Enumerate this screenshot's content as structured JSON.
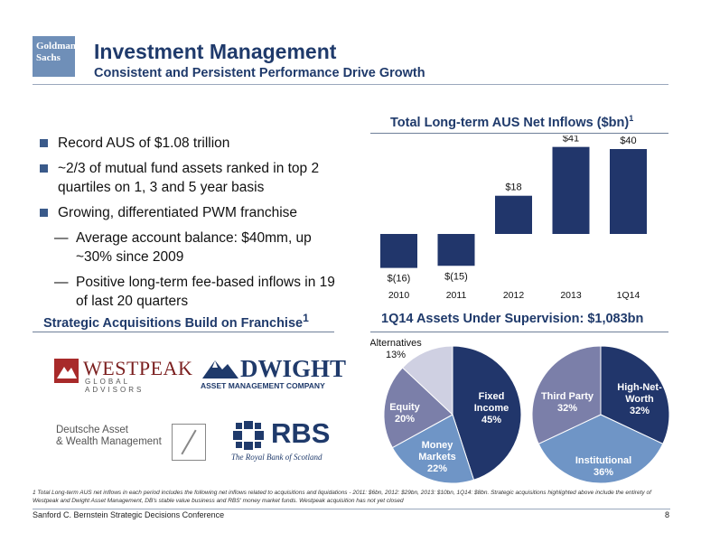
{
  "header": {
    "logo_line1": "Goldman",
    "logo_line2": "Sachs",
    "title": "Investment Management",
    "subtitle": "Consistent and Persistent Performance Drive Growth"
  },
  "bullets": [
    "Record AUS of $1.08 trillion",
    "~2/3 of mutual fund assets ranked in top 2 quartiles on 1, 3 and 5 year basis",
    "Growing, differentiated PWM franchise"
  ],
  "sub_bullets": [
    "Average account balance: $40mm, up ~30% since 2009",
    "Positive long-term fee-based inflows in 19 of last 20 quarters"
  ],
  "dash": "—",
  "acquisitions": {
    "title": "Strategic Acquisitions Build on Franchise",
    "title_sup": "1",
    "westpeak_name": "WESTPEAK",
    "westpeak_sub": "GLOBAL ADVISORS",
    "dwight_name": "DWIGHT",
    "dwight_sub": "ASSET MANAGEMENT COMPANY",
    "deutsche_line1": "Deutsche Asset",
    "deutsche_line2": "& Wealth Management",
    "rbs_name": "RBS",
    "rbs_sub": "The Royal Bank of Scotland"
  },
  "colors": {
    "navy": "#1f3a6b",
    "bar": "#21366b",
    "slate": "#7b7fa9",
    "light_lavender": "#cfd0e2",
    "steel_blue": "#6f95c6"
  },
  "chart_data": [
    {
      "type": "bar",
      "title": "Total Long-term AUS Net Inflows ($bn)",
      "title_sup": "1",
      "categories": [
        "2010",
        "2011",
        "2012",
        "2013",
        "1Q14"
      ],
      "values": [
        -16,
        -15,
        18,
        41,
        40
      ],
      "data_labels": [
        "$(16)",
        "$(15)",
        "$18",
        "$41",
        "$40"
      ],
      "xlabel": "",
      "ylabel": ""
    },
    {
      "type": "pie",
      "title": "1Q14 Assets Under Supervision: $1,083bn",
      "slices": [
        {
          "label": "Fixed Income",
          "value": 45,
          "pct_label": "45%"
        },
        {
          "label": "Money Markets",
          "value": 22,
          "pct_label": "22%"
        },
        {
          "label": "Equity",
          "value": 20,
          "pct_label": "20%"
        },
        {
          "label": "Alternatives",
          "value": 13,
          "pct_label": "13%"
        }
      ]
    },
    {
      "type": "pie",
      "title": "",
      "slices": [
        {
          "label": "High-Net-Worth",
          "value": 32,
          "pct_label": "32%"
        },
        {
          "label": "Institutional",
          "value": 36,
          "pct_label": "36%"
        },
        {
          "label": "Third Party",
          "value": 32,
          "pct_label": "32%"
        }
      ]
    }
  ],
  "footnote": "1 Total Long-term AUS net inflows in each period includes the following net inflows related to acquisitions and liquidations - 2011: $6bn, 2012: $29bn, 2013: $10bn, 1Q14: $8bn. Strategic acquisitions highlighted above include the entirety of Westpeak and Dwight Asset Management, DB's stable value business and RBS' money market funds. Westpeak acquisition has not yet closed",
  "footer": {
    "text": "Sanford C. Bernstein Strategic Decisions Conference",
    "page": "8"
  }
}
